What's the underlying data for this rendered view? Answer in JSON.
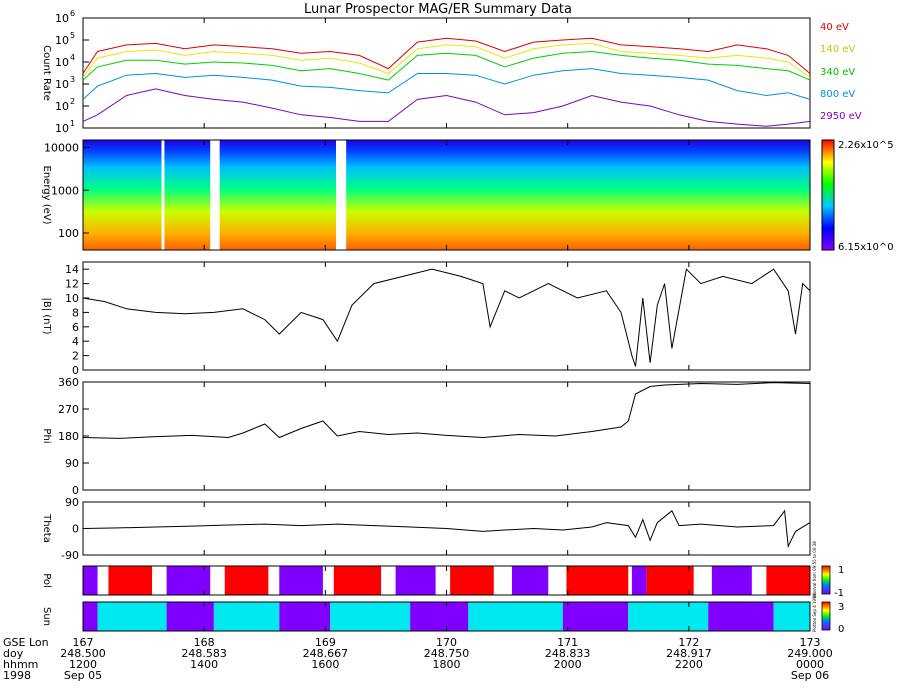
{
  "title": "Lunar Prospector MAG/ER Summary Data",
  "colors": {
    "e40": "#e00000",
    "e140": "#e8e800",
    "e340": "#00d000",
    "e800": "#0090e0",
    "e2950": "#8000c0",
    "pol_pos": "#ff0000",
    "pol_neg": "#8000ff",
    "sun_lit": "#00e8f0",
    "sun_dark": "#8000ff"
  },
  "chart_data": [
    {
      "id": "count-rate",
      "type": "line",
      "ylabel": "Count Rate",
      "yscale": "log",
      "ylim": [
        10,
        1000000
      ],
      "yticks": [
        "10^1",
        "10^2",
        "10^3",
        "10^4",
        "10^5",
        "10^6"
      ],
      "series": [
        {
          "name": "40 eV",
          "color": "#e00000",
          "values": [
            [
              0,
              3000
            ],
            [
              0.02,
              30000
            ],
            [
              0.06,
              60000
            ],
            [
              0.1,
              70000
            ],
            [
              0.14,
              40000
            ],
            [
              0.18,
              60000
            ],
            [
              0.22,
              50000
            ],
            [
              0.26,
              40000
            ],
            [
              0.3,
              25000
            ],
            [
              0.34,
              30000
            ],
            [
              0.38,
              20000
            ],
            [
              0.42,
              5000
            ],
            [
              0.46,
              80000
            ],
            [
              0.5,
              120000
            ],
            [
              0.54,
              90000
            ],
            [
              0.58,
              30000
            ],
            [
              0.62,
              80000
            ],
            [
              0.66,
              100000
            ],
            [
              0.7,
              120000
            ],
            [
              0.74,
              60000
            ],
            [
              0.78,
              50000
            ],
            [
              0.82,
              40000
            ],
            [
              0.86,
              30000
            ],
            [
              0.9,
              60000
            ],
            [
              0.94,
              40000
            ],
            [
              0.97,
              20000
            ],
            [
              1,
              3000
            ]
          ]
        },
        {
          "name": "140 eV",
          "color": "#e8e800",
          "values": [
            [
              0,
              2000
            ],
            [
              0.02,
              15000
            ],
            [
              0.06,
              30000
            ],
            [
              0.1,
              35000
            ],
            [
              0.14,
              20000
            ],
            [
              0.18,
              30000
            ],
            [
              0.22,
              25000
            ],
            [
              0.26,
              20000
            ],
            [
              0.3,
              12000
            ],
            [
              0.34,
              15000
            ],
            [
              0.38,
              9000
            ],
            [
              0.42,
              3000
            ],
            [
              0.46,
              40000
            ],
            [
              0.5,
              60000
            ],
            [
              0.54,
              50000
            ],
            [
              0.58,
              15000
            ],
            [
              0.62,
              40000
            ],
            [
              0.66,
              60000
            ],
            [
              0.7,
              70000
            ],
            [
              0.74,
              30000
            ],
            [
              0.78,
              25000
            ],
            [
              0.82,
              20000
            ],
            [
              0.86,
              15000
            ],
            [
              0.9,
              20000
            ],
            [
              0.94,
              15000
            ],
            [
              0.97,
              10000
            ],
            [
              1,
              2000
            ]
          ]
        },
        {
          "name": "340 eV",
          "color": "#00d000",
          "values": [
            [
              0,
              1500
            ],
            [
              0.02,
              6000
            ],
            [
              0.06,
              12000
            ],
            [
              0.1,
              12000
            ],
            [
              0.14,
              8000
            ],
            [
              0.18,
              10000
            ],
            [
              0.22,
              9000
            ],
            [
              0.26,
              7000
            ],
            [
              0.3,
              4000
            ],
            [
              0.34,
              5000
            ],
            [
              0.38,
              3000
            ],
            [
              0.42,
              1500
            ],
            [
              0.46,
              20000
            ],
            [
              0.5,
              25000
            ],
            [
              0.54,
              20000
            ],
            [
              0.58,
              6000
            ],
            [
              0.62,
              15000
            ],
            [
              0.66,
              25000
            ],
            [
              0.7,
              30000
            ],
            [
              0.74,
              20000
            ],
            [
              0.78,
              15000
            ],
            [
              0.82,
              12000
            ],
            [
              0.86,
              8000
            ],
            [
              0.9,
              7000
            ],
            [
              0.94,
              5000
            ],
            [
              0.97,
              4000
            ],
            [
              1,
              1500
            ]
          ]
        },
        {
          "name": "800 eV",
          "color": "#0090e0",
          "values": [
            [
              0,
              200
            ],
            [
              0.02,
              800
            ],
            [
              0.06,
              2500
            ],
            [
              0.1,
              3000
            ],
            [
              0.14,
              2000
            ],
            [
              0.18,
              2500
            ],
            [
              0.22,
              2000
            ],
            [
              0.26,
              1500
            ],
            [
              0.3,
              800
            ],
            [
              0.34,
              700
            ],
            [
              0.38,
              500
            ],
            [
              0.42,
              400
            ],
            [
              0.46,
              3000
            ],
            [
              0.5,
              3000
            ],
            [
              0.54,
              2500
            ],
            [
              0.58,
              1000
            ],
            [
              0.62,
              2500
            ],
            [
              0.66,
              4000
            ],
            [
              0.7,
              5000
            ],
            [
              0.74,
              3000
            ],
            [
              0.78,
              2500
            ],
            [
              0.82,
              2000
            ],
            [
              0.86,
              1500
            ],
            [
              0.9,
              500
            ],
            [
              0.94,
              300
            ],
            [
              0.97,
              400
            ],
            [
              1,
              200
            ]
          ]
        },
        {
          "name": "2950 eV",
          "color": "#8000c0",
          "values": [
            [
              0,
              20
            ],
            [
              0.02,
              40
            ],
            [
              0.06,
              300
            ],
            [
              0.1,
              600
            ],
            [
              0.14,
              300
            ],
            [
              0.18,
              200
            ],
            [
              0.22,
              150
            ],
            [
              0.26,
              80
            ],
            [
              0.3,
              40
            ],
            [
              0.34,
              30
            ],
            [
              0.38,
              20
            ],
            [
              0.42,
              20
            ],
            [
              0.46,
              200
            ],
            [
              0.5,
              300
            ],
            [
              0.54,
              150
            ],
            [
              0.58,
              40
            ],
            [
              0.62,
              50
            ],
            [
              0.66,
              100
            ],
            [
              0.7,
              300
            ],
            [
              0.74,
              150
            ],
            [
              0.78,
              100
            ],
            [
              0.82,
              40
            ],
            [
              0.86,
              20
            ],
            [
              0.9,
              15
            ],
            [
              0.94,
              12
            ],
            [
              0.97,
              15
            ],
            [
              1,
              20
            ]
          ]
        }
      ]
    },
    {
      "id": "spectrogram",
      "type": "heatmap",
      "ylabel": "Energy (eV)",
      "yscale": "log",
      "ylim": [
        40,
        15000
      ],
      "yticks": [
        "100",
        "1000",
        "10000"
      ],
      "colorbar": {
        "max_label": "2.26x10^5",
        "min_label": "6.15x10^0"
      },
      "gaps": [
        [
          0.108,
          0.112
        ],
        [
          0.175,
          0.188
        ],
        [
          0.348,
          0.362
        ]
      ]
    },
    {
      "id": "b-magnitude",
      "type": "line",
      "ylabel": "|B| (nT)",
      "ylim": [
        0,
        15
      ],
      "yticks": [
        0,
        2,
        4,
        6,
        8,
        10,
        12,
        14
      ],
      "values": [
        [
          0,
          10
        ],
        [
          0.03,
          9.5
        ],
        [
          0.06,
          8.5
        ],
        [
          0.1,
          8
        ],
        [
          0.14,
          7.8
        ],
        [
          0.18,
          8
        ],
        [
          0.22,
          8.5
        ],
        [
          0.25,
          7
        ],
        [
          0.27,
          5
        ],
        [
          0.3,
          8
        ],
        [
          0.33,
          7
        ],
        [
          0.35,
          4
        ],
        [
          0.37,
          9
        ],
        [
          0.4,
          12
        ],
        [
          0.44,
          13
        ],
        [
          0.48,
          14
        ],
        [
          0.52,
          13
        ],
        [
          0.55,
          12
        ],
        [
          0.56,
          6
        ],
        [
          0.58,
          11
        ],
        [
          0.6,
          10
        ],
        [
          0.64,
          12
        ],
        [
          0.68,
          10
        ],
        [
          0.72,
          11
        ],
        [
          0.74,
          8
        ],
        [
          0.755,
          2
        ],
        [
          0.76,
          0.5
        ],
        [
          0.77,
          10
        ],
        [
          0.78,
          1
        ],
        [
          0.79,
          9
        ],
        [
          0.8,
          12
        ],
        [
          0.81,
          3
        ],
        [
          0.83,
          14
        ],
        [
          0.85,
          12
        ],
        [
          0.88,
          13
        ],
        [
          0.92,
          12
        ],
        [
          0.95,
          14
        ],
        [
          0.97,
          11
        ],
        [
          0.98,
          5
        ],
        [
          0.99,
          12
        ],
        [
          1,
          11
        ]
      ]
    },
    {
      "id": "phi",
      "type": "line",
      "ylabel": "Phi",
      "ylim": [
        0,
        360
      ],
      "yticks": [
        0,
        90,
        180,
        270,
        360
      ],
      "values": [
        [
          0,
          175
        ],
        [
          0.05,
          172
        ],
        [
          0.1,
          178
        ],
        [
          0.15,
          182
        ],
        [
          0.2,
          175
        ],
        [
          0.22,
          190
        ],
        [
          0.25,
          220
        ],
        [
          0.27,
          175
        ],
        [
          0.3,
          205
        ],
        [
          0.33,
          230
        ],
        [
          0.35,
          180
        ],
        [
          0.38,
          195
        ],
        [
          0.42,
          185
        ],
        [
          0.46,
          190
        ],
        [
          0.5,
          182
        ],
        [
          0.55,
          175
        ],
        [
          0.6,
          185
        ],
        [
          0.65,
          180
        ],
        [
          0.7,
          195
        ],
        [
          0.74,
          210
        ],
        [
          0.75,
          230
        ],
        [
          0.76,
          320
        ],
        [
          0.78,
          345
        ],
        [
          0.8,
          350
        ],
        [
          0.85,
          355
        ],
        [
          0.9,
          352
        ],
        [
          0.95,
          358
        ],
        [
          1,
          355
        ]
      ]
    },
    {
      "id": "theta",
      "type": "line",
      "ylabel": "Theta",
      "ylim": [
        -90,
        90
      ],
      "yticks": [
        -90,
        0,
        90
      ],
      "values": [
        [
          0,
          0
        ],
        [
          0.05,
          2
        ],
        [
          0.1,
          5
        ],
        [
          0.15,
          8
        ],
        [
          0.2,
          12
        ],
        [
          0.25,
          15
        ],
        [
          0.3,
          10
        ],
        [
          0.35,
          15
        ],
        [
          0.4,
          10
        ],
        [
          0.45,
          5
        ],
        [
          0.5,
          0
        ],
        [
          0.55,
          -10
        ],
        [
          0.58,
          -5
        ],
        [
          0.62,
          0
        ],
        [
          0.66,
          -5
        ],
        [
          0.7,
          5
        ],
        [
          0.72,
          20
        ],
        [
          0.75,
          10
        ],
        [
          0.76,
          -30
        ],
        [
          0.77,
          30
        ],
        [
          0.78,
          -40
        ],
        [
          0.79,
          20
        ],
        [
          0.8,
          40
        ],
        [
          0.81,
          60
        ],
        [
          0.82,
          10
        ],
        [
          0.85,
          15
        ],
        [
          0.9,
          5
        ],
        [
          0.95,
          10
        ],
        [
          0.965,
          60
        ],
        [
          0.97,
          -60
        ],
        [
          0.98,
          -10
        ],
        [
          1,
          20
        ]
      ]
    },
    {
      "id": "polarity",
      "type": "table",
      "ylabel": "Pol",
      "colorbar_ticks": [
        "1",
        "-1"
      ],
      "colorbar_caption": "Interval from 09:55 to 00:38",
      "segments": [
        [
          0,
          0.02,
          "neg"
        ],
        [
          0.035,
          0.095,
          "pos"
        ],
        [
          0.115,
          0.175,
          "neg"
        ],
        [
          0.195,
          0.255,
          "pos"
        ],
        [
          0.27,
          0.33,
          "neg"
        ],
        [
          0.345,
          0.41,
          "pos"
        ],
        [
          0.43,
          0.485,
          "neg"
        ],
        [
          0.505,
          0.565,
          "pos"
        ],
        [
          0.59,
          0.64,
          "neg"
        ],
        [
          0.665,
          0.75,
          "pos"
        ],
        [
          0.755,
          0.775,
          "neg"
        ],
        [
          0.775,
          0.84,
          "pos"
        ],
        [
          0.865,
          0.92,
          "neg"
        ],
        [
          0.94,
          1,
          "pos"
        ]
      ]
    },
    {
      "id": "sun",
      "type": "table",
      "ylabel": "Sun",
      "colorbar_ticks": [
        "3",
        "2",
        "1",
        "0"
      ],
      "colorbar_caption": "Plotted Sep 4 1998",
      "segments": [
        [
          0,
          0.02,
          "dark"
        ],
        [
          0.02,
          0.115,
          "lit"
        ],
        [
          0.115,
          0.18,
          "dark"
        ],
        [
          0.18,
          0.27,
          "lit"
        ],
        [
          0.27,
          0.34,
          "dark"
        ],
        [
          0.34,
          0.45,
          "lit"
        ],
        [
          0.45,
          0.53,
          "dark"
        ],
        [
          0.53,
          0.66,
          "lit"
        ],
        [
          0.66,
          0.75,
          "dark"
        ],
        [
          0.75,
          0.86,
          "lit"
        ],
        [
          0.86,
          0.95,
          "dark"
        ],
        [
          0.95,
          1,
          "lit"
        ]
      ]
    }
  ],
  "xaxis": {
    "row_labels": [
      "GSE Lon",
      "doy",
      "hhmm",
      "1998"
    ],
    "ticks": [
      {
        "lon": "167",
        "doy": "248.500",
        "hhmm": "1200",
        "date": "Sep 05"
      },
      {
        "lon": "168",
        "doy": "248.583",
        "hhmm": "1400",
        "date": ""
      },
      {
        "lon": "169",
        "doy": "248.667",
        "hhmm": "1600",
        "date": ""
      },
      {
        "lon": "170",
        "doy": "248.750",
        "hhmm": "1800",
        "date": ""
      },
      {
        "lon": "171",
        "doy": "248.833",
        "hhmm": "2000",
        "date": ""
      },
      {
        "lon": "172",
        "doy": "248.917",
        "hhmm": "2200",
        "date": ""
      },
      {
        "lon": "173",
        "doy": "249.000",
        "hhmm": "0000",
        "date": "Sep 06"
      }
    ]
  }
}
